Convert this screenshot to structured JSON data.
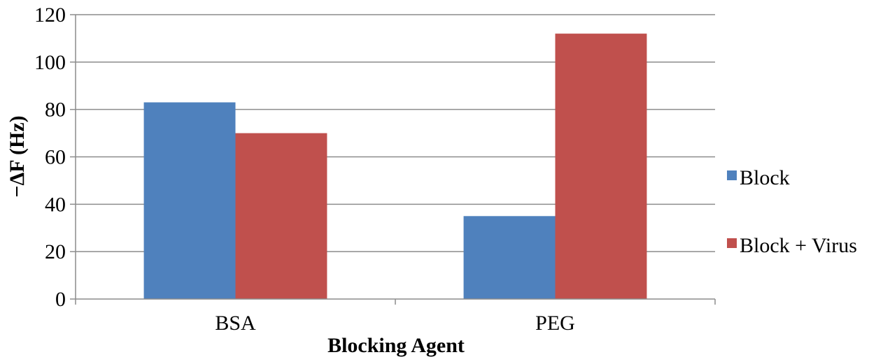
{
  "chart_data": {
    "type": "bar",
    "categories": [
      "BSA",
      "PEG"
    ],
    "series": [
      {
        "name": "Block",
        "values": [
          83,
          35
        ],
        "color": "#4F81BD"
      },
      {
        "name": "Block + Virus",
        "values": [
          70,
          112
        ],
        "color": "#C0504D"
      }
    ],
    "title": "",
    "xlabel": "Blocking Agent",
    "ylabel": "−ΔF (Hz)",
    "ylim": [
      0,
      120
    ],
    "yticks": [
      0,
      20,
      40,
      60,
      80,
      100,
      120
    ],
    "grid": true,
    "legend_position": "right"
  }
}
